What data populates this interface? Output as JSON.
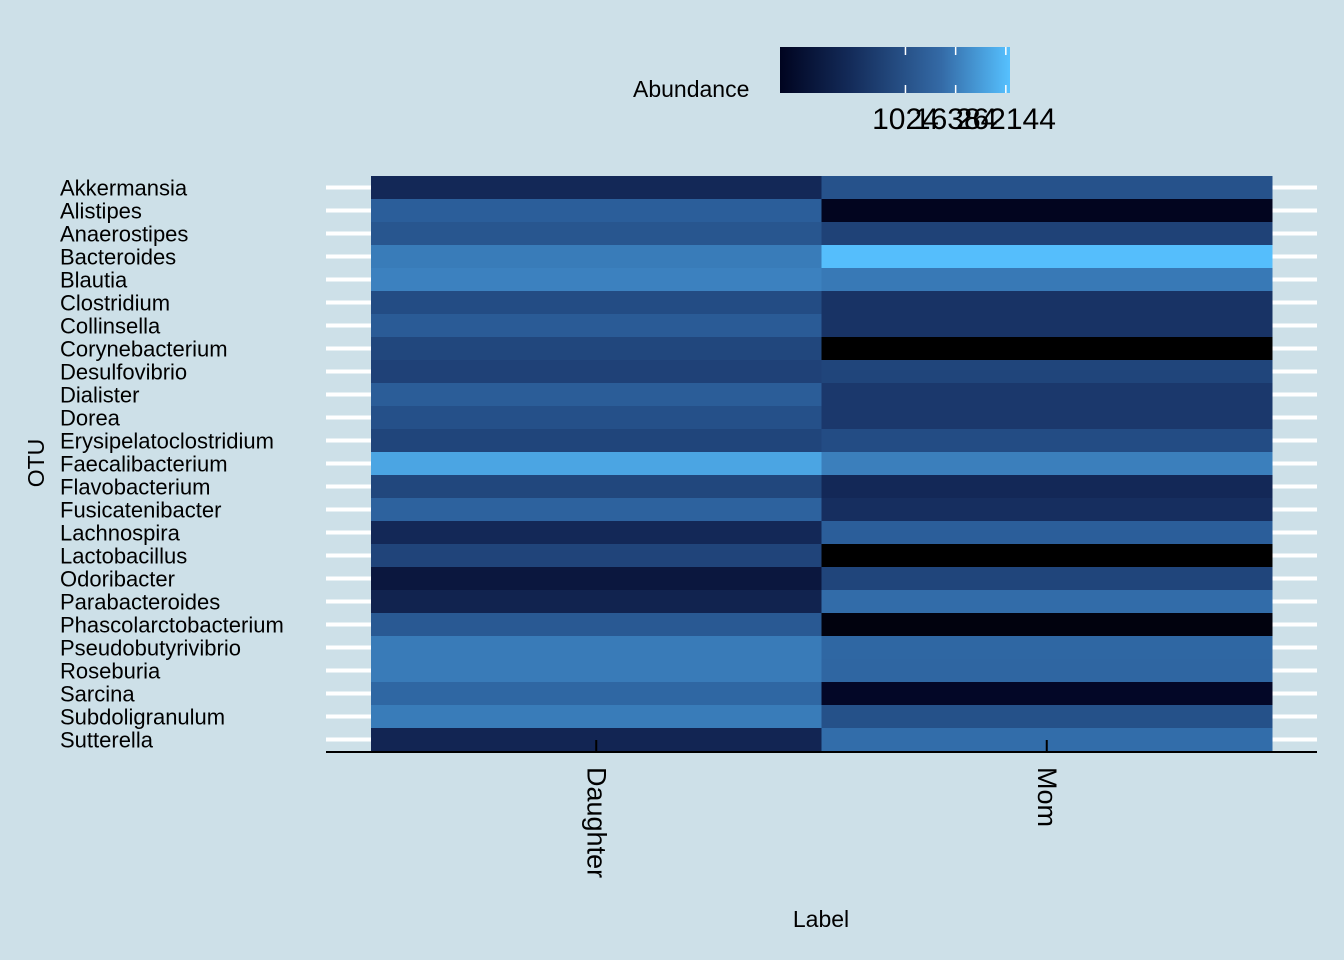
{
  "chart_data": {
    "type": "heatmap",
    "xlabel": "Label",
    "ylabel": "OTU",
    "columns": [
      "Daughter",
      "Mom"
    ],
    "rows": [
      "Akkermansia",
      "Alistipes",
      "Anaerostipes",
      "Bacteroides",
      "Blautia",
      "Clostridium",
      "Collinsella",
      "Corynebacterium",
      "Desulfovibrio",
      "Dialister",
      "Dorea",
      "Erysipelatoclostridium",
      "Faecalibacterium",
      "Flavobacterium",
      "Fusicatenibacter",
      "Lachnospira",
      "Lactobacillus",
      "Odoribacter",
      "Parabacteroides",
      "Phascolarctobacterium",
      "Pseudobutyrivibrio",
      "Roseburia",
      "Sarcina",
      "Subdoligranulum",
      "Sutterella"
    ],
    "values": [
      [
        700,
        6400
      ],
      [
        11500,
        22
      ],
      [
        7500,
        2900
      ],
      [
        40000,
        300000
      ],
      [
        50000,
        36000
      ],
      [
        4800,
        1400
      ],
      [
        10000,
        1400
      ],
      [
        3600,
        1
      ],
      [
        2800,
        3300
      ],
      [
        11000,
        1800
      ],
      [
        5800,
        1800
      ],
      [
        3400,
        4800
      ],
      [
        150000,
        45000
      ],
      [
        3600,
        700
      ],
      [
        13500,
        1100
      ],
      [
        700,
        11500
      ],
      [
        3200,
        1
      ],
      [
        170,
        3400
      ],
      [
        450,
        21000
      ],
      [
        9000,
        4
      ],
      [
        38000,
        17000
      ],
      [
        38000,
        16000
      ],
      [
        17000,
        48
      ],
      [
        40000,
        6000
      ],
      [
        550,
        22000
      ]
    ],
    "legend": {
      "title": "Abundance",
      "scale": "log",
      "colors": [
        "#000000",
        "#56c1ff"
      ],
      "tick_labels": [
        "1024",
        "16384",
        "262144"
      ],
      "tick_values": [
        1024,
        16384,
        262144
      ],
      "range": [
        1,
        330000
      ],
      "placement": "top"
    }
  }
}
